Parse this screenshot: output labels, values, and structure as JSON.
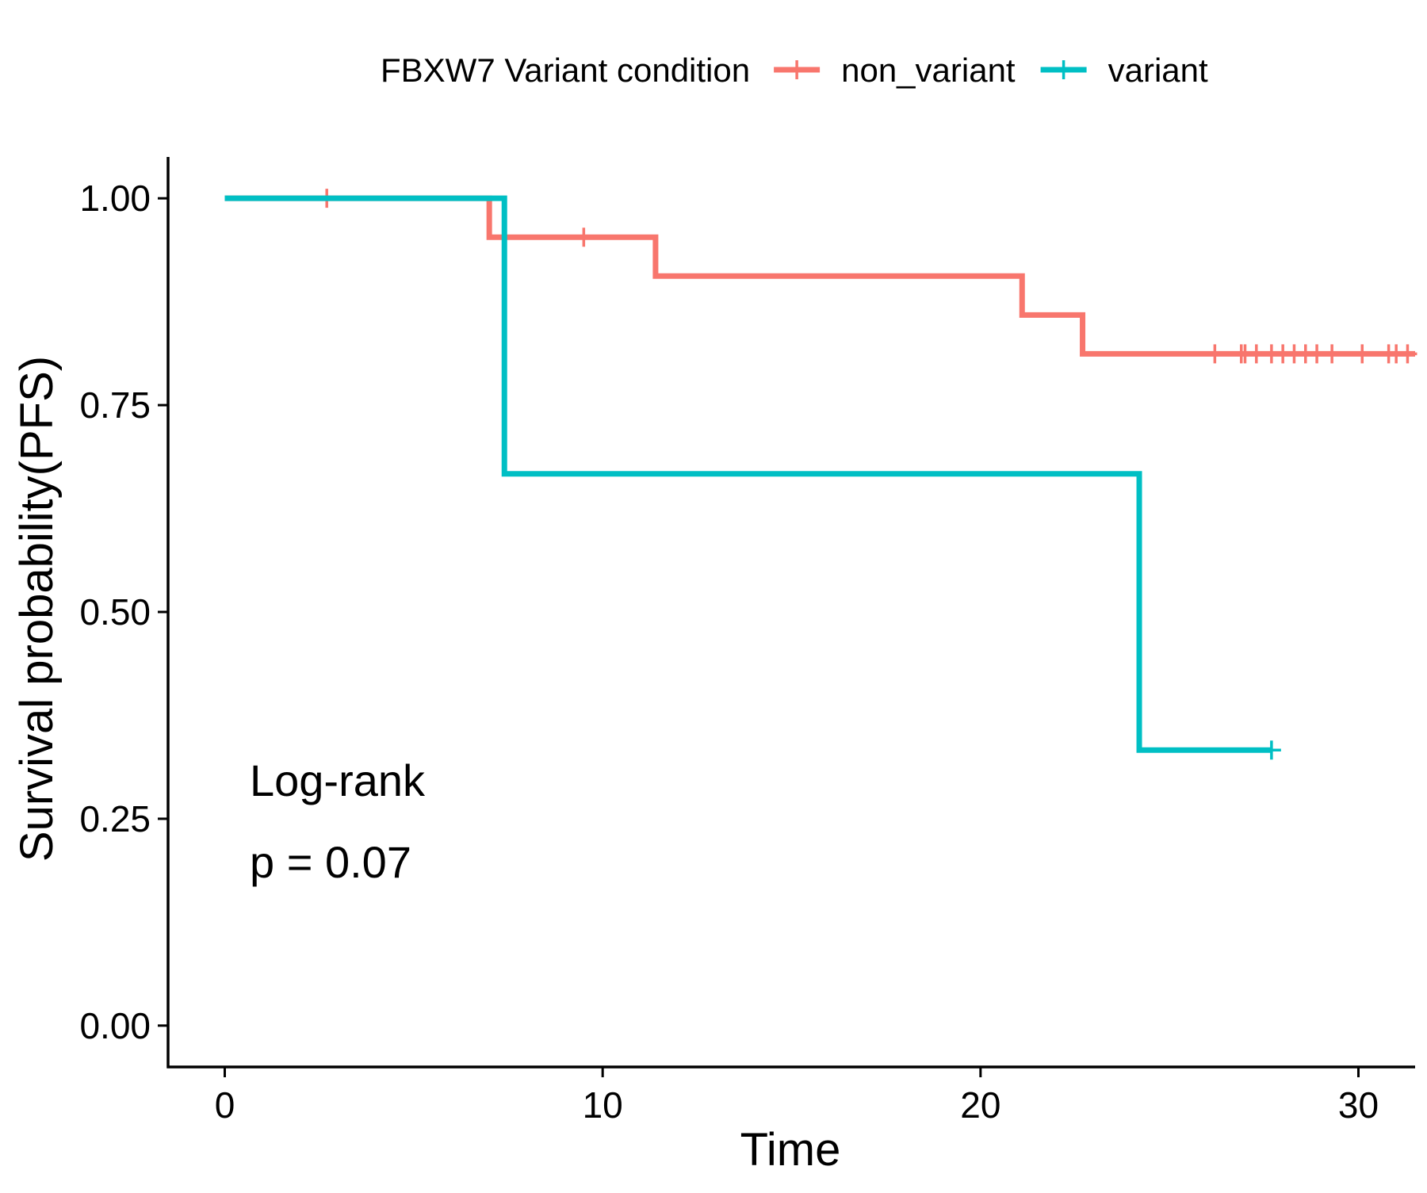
{
  "chart_data": {
    "type": "line",
    "subtype": "kaplan-meier step",
    "xlabel": "Time",
    "ylabel": "Survival probability(PFS)",
    "xlim": [
      -1.5,
      31.5
    ],
    "ylim": [
      -0.05,
      1.05
    ],
    "xticks": [
      0,
      10,
      20,
      30
    ],
    "xtick_labels": [
      "0",
      "10",
      "20",
      "30"
    ],
    "yticks": [
      0,
      0.25,
      0.5,
      0.75,
      1.0
    ],
    "ytick_labels": [
      "0.00",
      "0.25",
      "0.50",
      "0.75",
      "1.00"
    ],
    "grid": false,
    "legend": {
      "title": "FBXW7 Variant condition",
      "placement": "top"
    },
    "annotations": {
      "test": "Log-rank",
      "pvalue": "p = 0.07"
    },
    "series": [
      {
        "name": "non_variant",
        "color": "#F8766D",
        "steps": [
          {
            "x": 0,
            "y": 1.0
          },
          {
            "x": 7.0,
            "y": 0.953
          },
          {
            "x": 11.4,
            "y": 0.906
          },
          {
            "x": 21.1,
            "y": 0.859
          },
          {
            "x": 22.7,
            "y": 0.812
          }
        ],
        "end_x": 31.5,
        "censors": [
          {
            "x": 2.7,
            "y": 1.0
          },
          {
            "x": 9.5,
            "y": 0.953
          },
          {
            "x": 26.2,
            "y": 0.812
          },
          {
            "x": 26.9,
            "y": 0.812
          },
          {
            "x": 27.0,
            "y": 0.812
          },
          {
            "x": 27.3,
            "y": 0.812
          },
          {
            "x": 27.7,
            "y": 0.812
          },
          {
            "x": 28.0,
            "y": 0.812
          },
          {
            "x": 28.3,
            "y": 0.812
          },
          {
            "x": 28.6,
            "y": 0.812
          },
          {
            "x": 28.9,
            "y": 0.812
          },
          {
            "x": 29.3,
            "y": 0.812
          },
          {
            "x": 30.1,
            "y": 0.812
          },
          {
            "x": 30.8,
            "y": 0.812
          },
          {
            "x": 31.0,
            "y": 0.812
          },
          {
            "x": 31.3,
            "y": 0.812
          }
        ]
      },
      {
        "name": "variant",
        "color": "#00BFC4",
        "steps": [
          {
            "x": 0,
            "y": 1.0
          },
          {
            "x": 7.4,
            "y": 0.667
          },
          {
            "x": 24.2,
            "y": 0.333
          }
        ],
        "end_x": 27.7,
        "censors": [
          {
            "x": 27.7,
            "y": 0.333
          }
        ]
      }
    ]
  }
}
